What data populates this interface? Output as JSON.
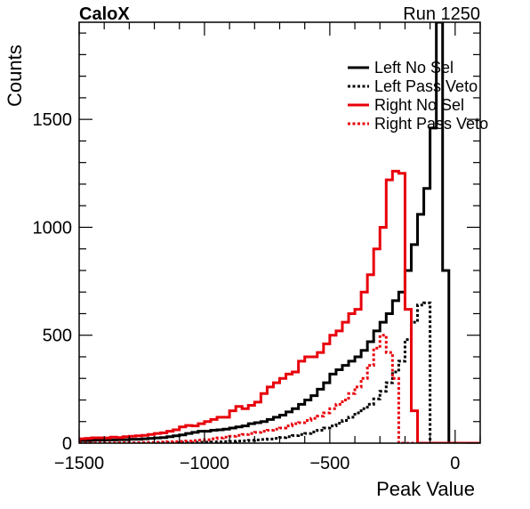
{
  "chart_data": {
    "type": "histogram",
    "title_left": "CaloX",
    "title_right": "Run 1250",
    "xlabel": "Peak Value",
    "ylabel": "Counts",
    "xlim": [
      -1500,
      100
    ],
    "ylim": [
      0,
      1950
    ],
    "x_ticks": [
      -1500,
      -1000,
      -500,
      0
    ],
    "x_tick_labels": [
      "−1500",
      "−1000",
      "−500",
      "0"
    ],
    "y_ticks": [
      0,
      500,
      1000,
      1500
    ],
    "y_tick_labels": [
      "0",
      "500",
      "1000",
      "1500"
    ],
    "bin_start": -1500,
    "bin_width": 25,
    "legend_position": "top-right",
    "series": [
      {
        "name": "Left No Sel",
        "color": "#000000",
        "dashed": false,
        "values": [
          12,
          12,
          14,
          14,
          15,
          15,
          16,
          16,
          18,
          18,
          20,
          22,
          24,
          26,
          30,
          34,
          38,
          45,
          50,
          55,
          55,
          60,
          62,
          65,
          70,
          75,
          80,
          90,
          95,
          100,
          110,
          120,
          130,
          145,
          160,
          180,
          200,
          220,
          250,
          280,
          320,
          340,
          360,
          380,
          400,
          430,
          470,
          520,
          560,
          600,
          660,
          700,
          800,
          920,
          1060,
          1180,
          1460,
          1950,
          800,
          0,
          0,
          0,
          0,
          0
        ]
      },
      {
        "name": "Left Pass Veto",
        "color": "#000000",
        "dashed": true,
        "values": [
          0,
          0,
          0,
          0,
          0,
          0,
          0,
          0,
          1,
          1,
          1,
          1,
          1,
          2,
          2,
          2,
          3,
          3,
          3,
          4,
          4,
          5,
          6,
          7,
          8,
          10,
          11,
          13,
          15,
          17,
          19,
          22,
          26,
          30,
          35,
          40,
          45,
          52,
          60,
          70,
          80,
          92,
          105,
          120,
          140,
          160,
          180,
          205,
          240,
          280,
          330,
          380,
          480,
          560,
          640,
          650,
          0,
          0,
          0,
          0,
          0,
          0,
          0,
          0
        ]
      },
      {
        "name": "Right No Sel",
        "color": "#e8000b",
        "dashed": false,
        "values": [
          20,
          22,
          25,
          25,
          24,
          28,
          26,
          30,
          32,
          34,
          36,
          40,
          45,
          48,
          55,
          62,
          75,
          82,
          80,
          90,
          100,
          110,
          120,
          120,
          150,
          170,
          160,
          175,
          190,
          230,
          260,
          280,
          300,
          320,
          330,
          380,
          400,
          400,
          420,
          460,
          500,
          520,
          560,
          600,
          620,
          700,
          780,
          900,
          1000,
          1220,
          1260,
          1250,
          620,
          150,
          0,
          0,
          0,
          0,
          0,
          0,
          0,
          0,
          0,
          0
        ]
      },
      {
        "name": "Right Pass Veto",
        "color": "#e8000b",
        "dashed": true,
        "values": [
          0,
          1,
          1,
          1,
          1,
          1,
          2,
          2,
          2,
          2,
          3,
          3,
          4,
          5,
          6,
          7,
          8,
          10,
          12,
          14,
          16,
          20,
          24,
          28,
          32,
          36,
          40,
          45,
          50,
          55,
          60,
          65,
          70,
          80,
          90,
          95,
          105,
          115,
          125,
          140,
          160,
          180,
          200,
          230,
          260,
          300,
          360,
          440,
          500,
          420,
          300,
          0,
          0,
          0,
          0,
          0,
          0,
          0,
          0,
          0,
          0,
          0,
          0,
          0
        ]
      }
    ]
  }
}
